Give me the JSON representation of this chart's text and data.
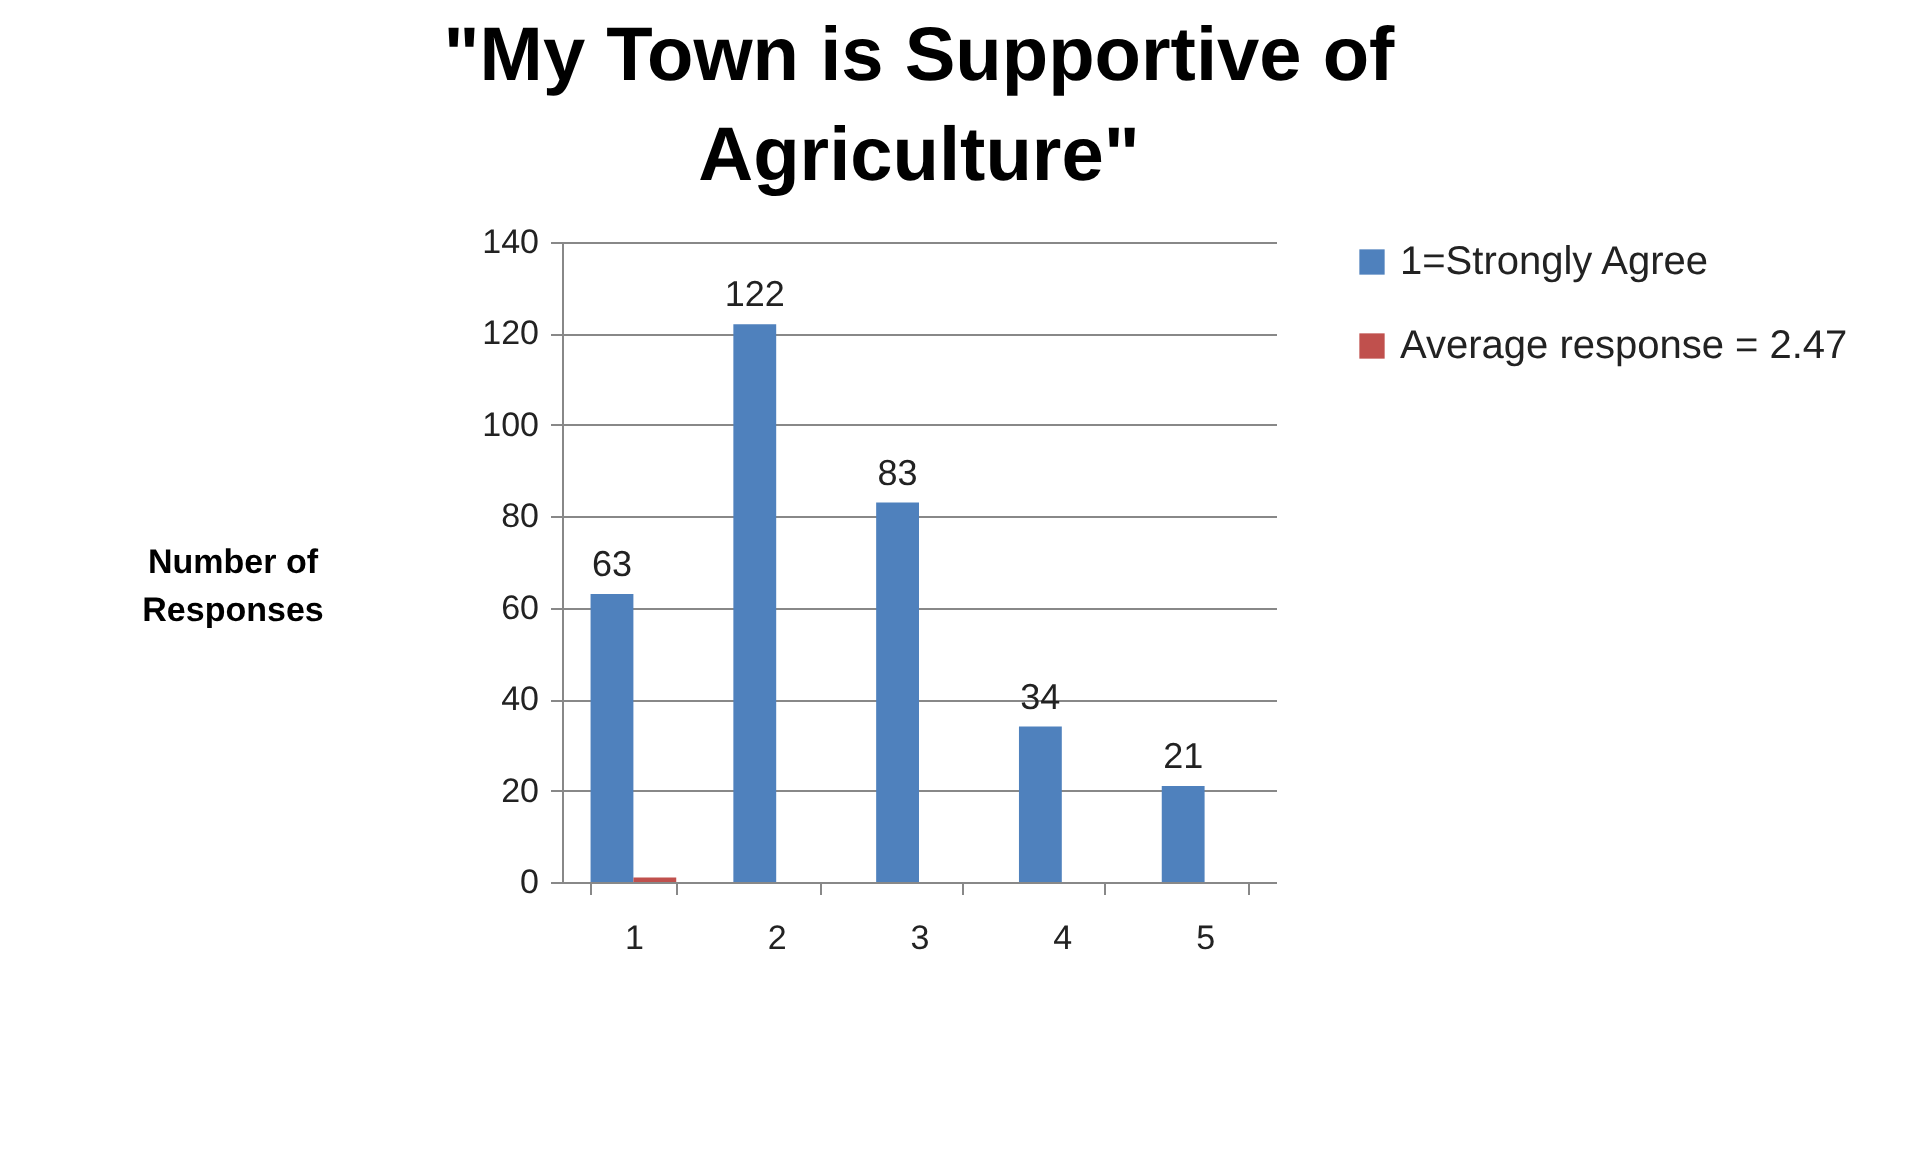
{
  "chart_data": {
    "type": "bar",
    "title": "\"My Town is Supportive of Agriculture\"",
    "ylabel": "Number of Responses",
    "categories": [
      "1",
      "2",
      "3",
      "4",
      "5"
    ],
    "series": [
      {
        "name": "1=Strongly Agree",
        "color": "#4f81bd",
        "values": [
          63,
          122,
          83,
          34,
          21
        ],
        "value_labels": [
          "63",
          "122",
          "83",
          "34",
          "21"
        ]
      },
      {
        "name": "Average response = 2.47",
        "color": "#c0504d",
        "values": [
          1,
          null,
          null,
          null,
          null
        ]
      }
    ],
    "ylim": [
      0,
      140
    ],
    "yticks": [
      0,
      20,
      40,
      60,
      80,
      100,
      120,
      140
    ],
    "grid": "y",
    "legend": "right"
  }
}
